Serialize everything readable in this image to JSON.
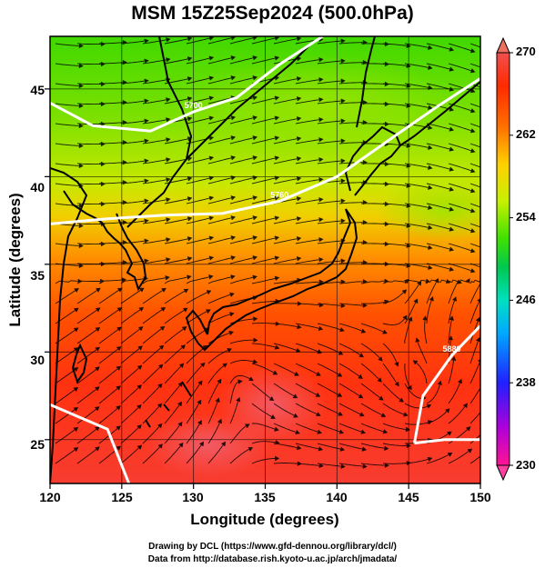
{
  "title": "MSM 15Z25Sep2024 (500.0hPa)",
  "x_axis": {
    "label": "Longitude (degrees)",
    "range": [
      120,
      150
    ],
    "ticks": [
      "120",
      "125",
      "130",
      "135",
      "140",
      "145",
      "150"
    ]
  },
  "y_axis": {
    "label": "Latitude  (degrees)",
    "range": [
      22.5,
      48
    ],
    "ticks": [
      "25",
      "30",
      "35",
      "40",
      "45"
    ]
  },
  "colorbar": {
    "min": 230,
    "max": 270,
    "labels": [
      "270",
      "262",
      "254",
      "246",
      "238",
      "230"
    ],
    "colors": [
      "#ff1493",
      "#b000d8",
      "#2020ff",
      "#00a8ff",
      "#00e0c0",
      "#00c850",
      "#40e000",
      "#c8f000",
      "#ffd000",
      "#ff7000",
      "#ff2a00",
      "#f05050"
    ]
  },
  "contours": [
    {
      "value": "570.0",
      "label": "5700",
      "path_data": [
        [
          120,
          44.2
        ],
        [
          123,
          42.9
        ],
        [
          127,
          42.6
        ],
        [
          130,
          43.7
        ],
        [
          133,
          44.5
        ],
        [
          136,
          46.4
        ],
        [
          139,
          48
        ]
      ]
    },
    {
      "value": "576.0",
      "label": "5760",
      "path_data": [
        [
          120,
          37.3
        ],
        [
          124,
          37.6
        ],
        [
          128,
          37.8
        ],
        [
          132,
          37.9
        ],
        [
          136,
          38.6
        ],
        [
          140,
          40.0
        ],
        [
          144,
          42.3
        ],
        [
          147,
          44.0
        ],
        [
          150,
          45.6
        ]
      ]
    },
    {
      "value": "588.0",
      "label": "5880",
      "path_data": [
        [
          145.4,
          24.8
        ],
        [
          146,
          27.5
        ],
        [
          148,
          29.8
        ],
        [
          150,
          31.5
        ]
      ]
    },
    {
      "value": "588.0",
      "label": "",
      "path_data": [
        [
          145.4,
          24.8
        ],
        [
          147.5,
          25.0
        ],
        [
          150,
          25.0
        ]
      ]
    },
    {
      "value": "588.0",
      "label": "",
      "path_data": [
        [
          120,
          27.0
        ],
        [
          122,
          26.3
        ],
        [
          124,
          25.6
        ],
        [
          125.5,
          22.5
        ]
      ]
    }
  ],
  "credits": {
    "line1": "Drawing by DCL (https://www.gfd-dennou.org/library/dcl/)",
    "line2": "Data from http://database.rish.kyoto-u.ac.jp/arch/jmadata/"
  }
}
